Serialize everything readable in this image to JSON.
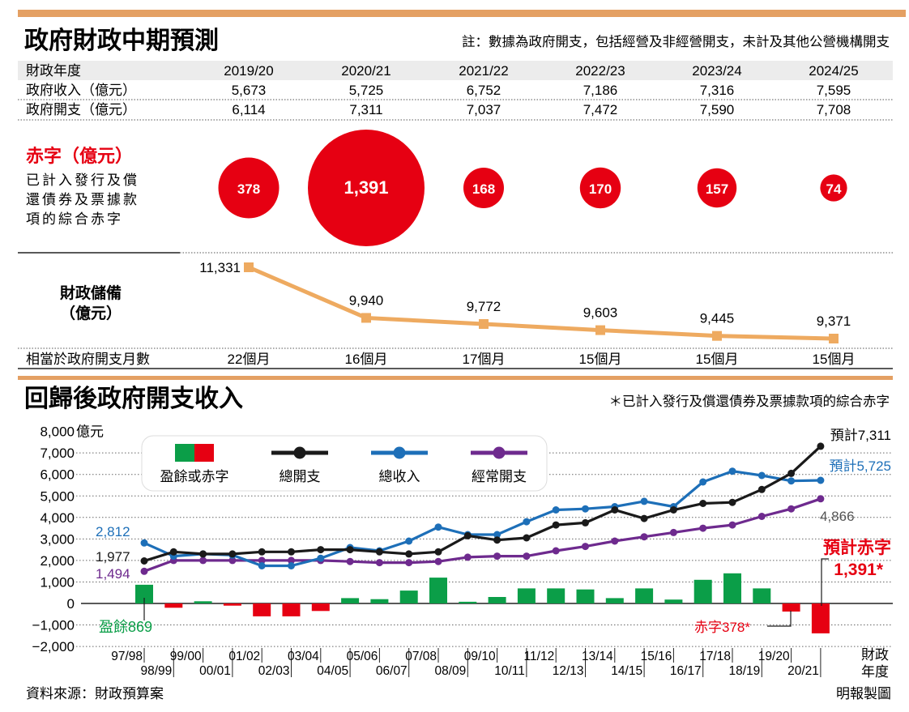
{
  "colors": {
    "accent_bar": "#e4a063",
    "deficit_red": "#e60012",
    "surplus_green": "#0b9e48",
    "reserves_line": "#eeaa60",
    "total_exp_line": "#1a1a1a",
    "total_rev_line": "#1d6fb8",
    "recurrent_exp_line": "#6e2a8e",
    "grid_dotted": "#666666"
  },
  "top": {
    "title": "政府財政中期預測",
    "note": "註：數據為政府開支，包括經營及非經營開支，未計及其他公營機構開支",
    "table": {
      "header_label": "財政年度",
      "years": [
        "2019/20",
        "2020/21",
        "2021/22",
        "2022/23",
        "2023/24",
        "2024/25"
      ],
      "rows": [
        {
          "label": "政府收入（億元）",
          "values": [
            "5,673",
            "5,725",
            "6,752",
            "7,186",
            "7,316",
            "7,595"
          ]
        },
        {
          "label": "政府開支（億元）",
          "values": [
            "6,114",
            "7,311",
            "7,037",
            "7,472",
            "7,590",
            "7,708"
          ]
        }
      ]
    },
    "deficit": {
      "title": "赤字（億元）",
      "desc_lines": [
        "已計入發行及償",
        "還債券及票據款",
        "項的綜合赤字"
      ],
      "values": [
        378,
        1391,
        168,
        170,
        157,
        74
      ],
      "labels": [
        "378",
        "1,391",
        "168",
        "170",
        "157",
        "74"
      ]
    },
    "reserves": {
      "title_line1": "財政儲備",
      "title_line2": "（億元）",
      "values": [
        11331,
        9940,
        9772,
        9603,
        9445,
        9371
      ],
      "labels": [
        "11,331",
        "9,940",
        "9,772",
        "9,603",
        "9,445",
        "9,371"
      ]
    },
    "months": {
      "label": "相當於政府開支月數",
      "values": [
        "22個月",
        "16個月",
        "17個月",
        "15個月",
        "15個月",
        "15個月"
      ]
    }
  },
  "bottom": {
    "title": "回歸後政府開支收入",
    "note": "＊已計入發行及償還債券及票據款項的綜合赤字",
    "y_unit": "億元",
    "x_axis_label_line1": "財政",
    "x_axis_label_line2": "年度",
    "legend": {
      "surplus_deficit": "盈餘或赤字",
      "total_exp": "總開支",
      "total_rev": "總收入",
      "recurrent_exp": "經常開支"
    },
    "annotations": {
      "rev_start": "2,812",
      "exp_start": "1,977",
      "rec_start": "1,494",
      "exp_end": "預計7,311",
      "rev_end": "預計5,725",
      "rec_end": "4,866",
      "projected_deficit_line1": "預計赤字",
      "projected_deficit_line2": "1,391*",
      "surplus_label": "盈餘869",
      "deficit_label": "赤字378*"
    }
  },
  "chart_data": {
    "type": "line",
    "title": "回歸後政府開支收入",
    "ylabel": "億元",
    "ylim": [
      -2000,
      8000
    ],
    "yticks": [
      -2000,
      -1000,
      0,
      1000,
      2000,
      3000,
      4000,
      5000,
      6000,
      7000,
      8000
    ],
    "ytick_labels": [
      "−2,000",
      "−1,000",
      "0",
      "1,000",
      "2,000",
      "3,000",
      "4,000",
      "5,000",
      "6,000",
      "7,000",
      "8,000"
    ],
    "xlabel": "財政年度",
    "categories": [
      "97/98",
      "98/99",
      "99/00",
      "00/01",
      "01/02",
      "02/03",
      "03/04",
      "04/05",
      "05/06",
      "06/07",
      "07/08",
      "08/09",
      "09/10",
      "10/11",
      "11/12",
      "12/13",
      "13/14",
      "14/15",
      "15/16",
      "16/17",
      "17/18",
      "18/19",
      "19/20",
      "20/21"
    ],
    "series": [
      {
        "name": "總開支",
        "type": "line",
        "values": [
          1977,
          2400,
          2300,
          2300,
          2400,
          2400,
          2500,
          2500,
          2400,
          2300,
          2400,
          3150,
          2950,
          3050,
          3650,
          3750,
          4350,
          3950,
          4350,
          4650,
          4700,
          5300,
          6050,
          7311
        ]
      },
      {
        "name": "總收入",
        "type": "line",
        "values": [
          2812,
          2200,
          2300,
          2250,
          1750,
          1750,
          2100,
          2600,
          2450,
          2900,
          3550,
          3200,
          3200,
          3800,
          4350,
          4400,
          4500,
          4750,
          4500,
          5650,
          6150,
          5950,
          5700,
          5725
        ]
      },
      {
        "name": "經常開支",
        "type": "line",
        "values": [
          1494,
          2000,
          2000,
          2000,
          2000,
          2000,
          2000,
          1950,
          1900,
          1900,
          1950,
          2150,
          2200,
          2200,
          2450,
          2650,
          2900,
          3100,
          3300,
          3500,
          3650,
          4050,
          4400,
          4866
        ]
      },
      {
        "name": "盈餘或赤字",
        "type": "bar",
        "values": [
          869,
          -200,
          100,
          -100,
          -600,
          -600,
          -350,
          250,
          200,
          600,
          1200,
          80,
          300,
          700,
          700,
          650,
          250,
          700,
          180,
          1100,
          1400,
          700,
          -378,
          -1391
        ]
      }
    ]
  }
}
